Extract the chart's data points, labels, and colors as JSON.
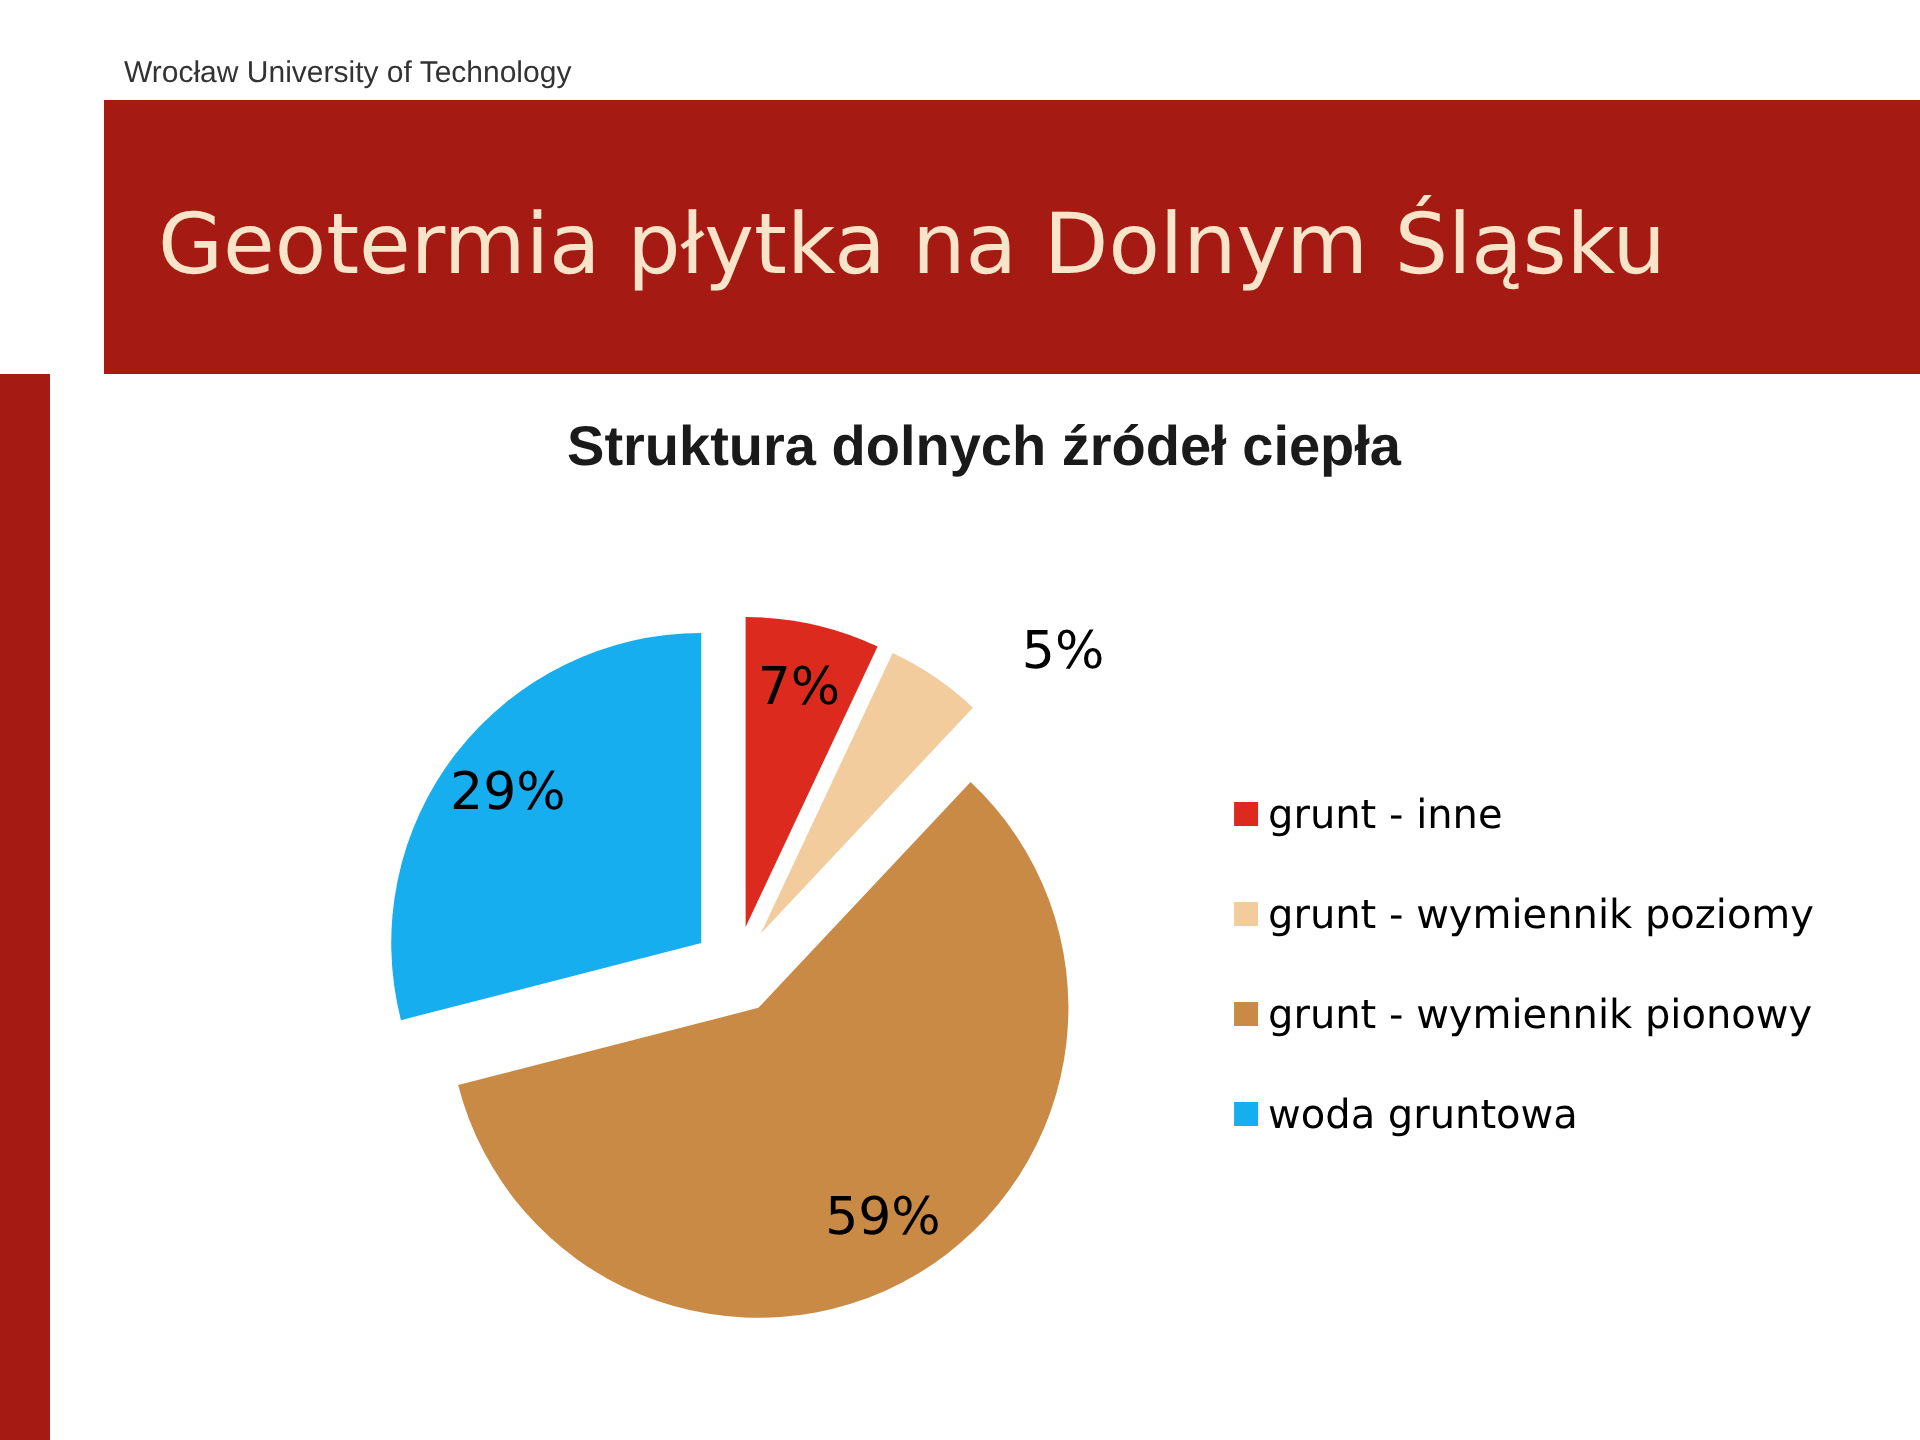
{
  "chart_data": {
    "type": "pie",
    "title": "Geotermia płytka na Dolnym Śląsku",
    "subtitle": "Struktura dolnych źródeł ciepła",
    "annotations": [
      "Wrocław University of Technology"
    ],
    "categories": [
      "grunt - inne",
      "grunt - wymiennik poziomy",
      "grunt - wymiennik pionowy",
      "woda gruntowa"
    ],
    "values": [
      7,
      5,
      59,
      29
    ],
    "colors": [
      "#dc2a1e",
      "#f2cc9c",
      "#c98a46",
      "#16aeee"
    ],
    "value_labels": [
      "7%",
      "5%",
      "59%",
      "29%"
    ],
    "legend": "right"
  }
}
